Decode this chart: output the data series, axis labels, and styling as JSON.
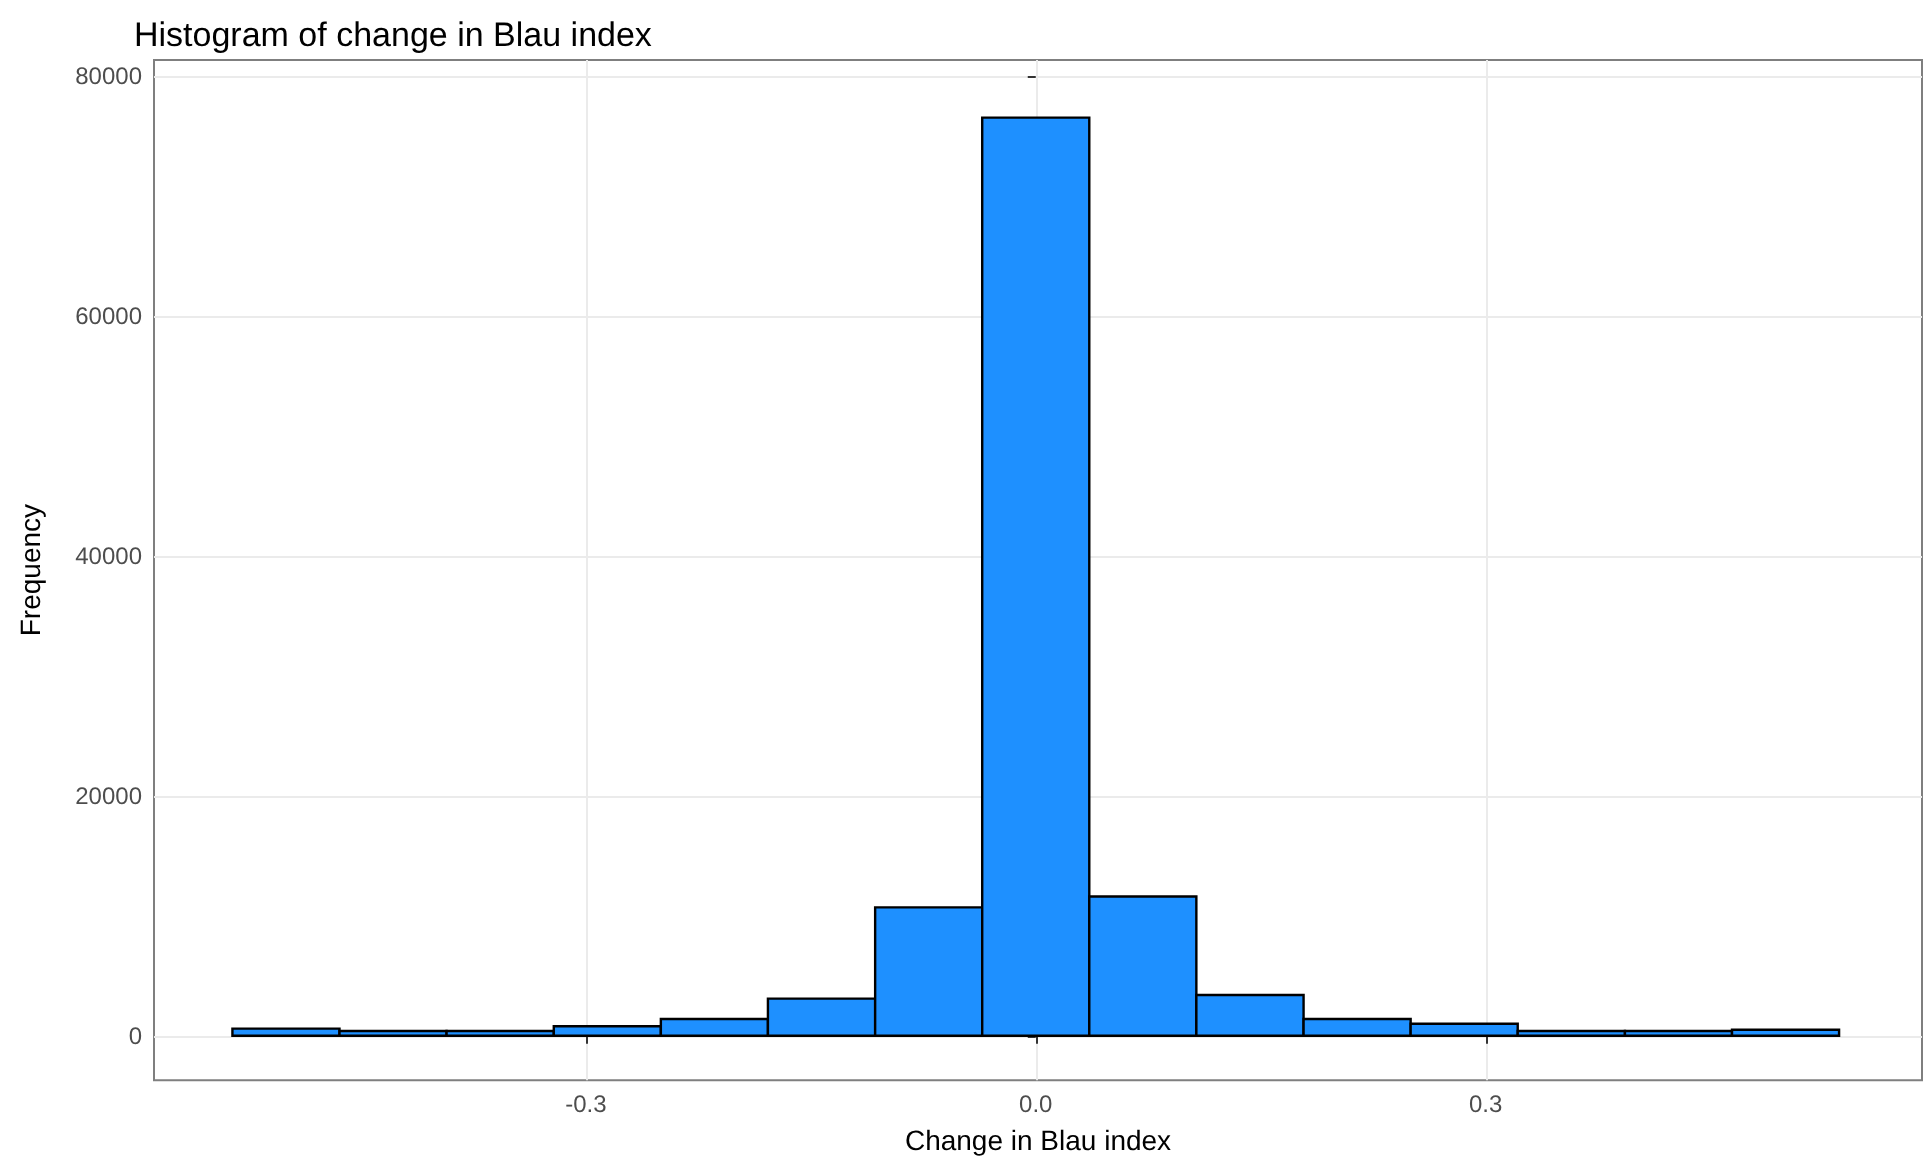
{
  "chart_data": {
    "type": "histogram",
    "title": "Histogram of change in Blau index",
    "xlabel": "Change in Blau index",
    "ylabel": "Frequency",
    "bins": [
      -0.5357,
      -0.4643,
      -0.3929,
      -0.3214,
      -0.25,
      -0.1786,
      -0.1071,
      -0.0357,
      0.0357,
      0.1071,
      0.1786,
      0.25,
      0.3214,
      0.3929,
      0.4643,
      0.5357
    ],
    "values": [
      600,
      400,
      400,
      800,
      1400,
      3100,
      10700,
      76500,
      11600,
      3400,
      1400,
      1000,
      400,
      400,
      500
    ],
    "color": "#1e90ff",
    "xlim": [
      -0.588,
      0.591
    ],
    "xticks": [
      -0.3,
      {
        "value": 0,
        "label": "0.0"
      },
      0.3
    ],
    "ylim": [
      -3700,
      81300
    ],
    "yticks": [
      0,
      20000,
      40000,
      60000,
      80000
    ],
    "grid": true
  }
}
